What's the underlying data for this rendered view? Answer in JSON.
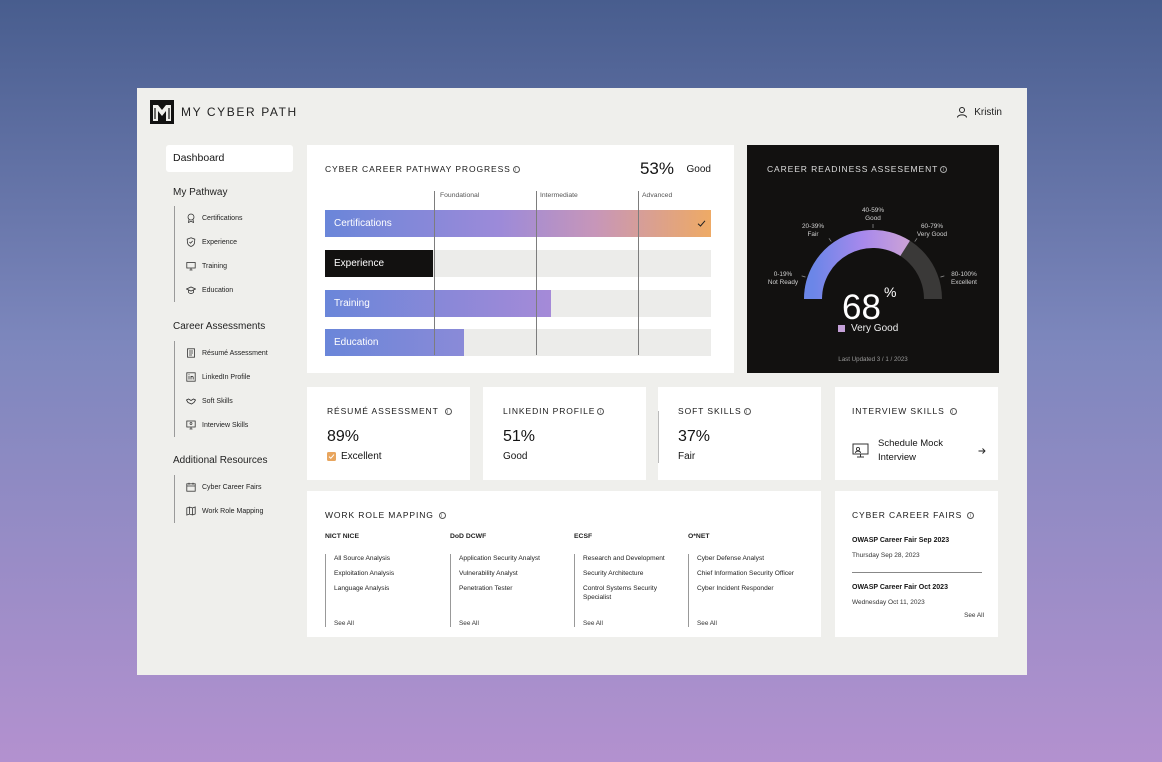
{
  "header": {
    "logo_text": "MY CYBER PATH",
    "user_name": "Kristin"
  },
  "sidebar": {
    "dashboard": "Dashboard",
    "sections": [
      {
        "title": "My Pathway",
        "items": [
          {
            "label": "Certifications",
            "icon": "badge-icon"
          },
          {
            "label": "Experience",
            "icon": "shield-icon"
          },
          {
            "label": "Training",
            "icon": "monitor-icon"
          },
          {
            "label": "Education",
            "icon": "graduation-cap-icon"
          }
        ]
      },
      {
        "title": "Career Assessments",
        "items": [
          {
            "label": "Résumé Assessment",
            "icon": "document-icon"
          },
          {
            "label": "LinkedIn Profile",
            "icon": "linkedin-icon"
          },
          {
            "label": "Soft Skills",
            "icon": "handshake-icon"
          },
          {
            "label": "Interview Skills",
            "icon": "interview-icon"
          }
        ]
      },
      {
        "title": "Additional Resources",
        "items": [
          {
            "label": "Cyber Career Fairs",
            "icon": "calendar-icon"
          },
          {
            "label": "Work Role Mapping",
            "icon": "map-icon"
          }
        ]
      }
    ]
  },
  "pathway": {
    "title": "CYBER CAREER PATHWAY PROGRESS",
    "percent": "53%",
    "rating": "Good",
    "levels": [
      "Foundational",
      "Intermediate",
      "Advanced"
    ],
    "bars": [
      {
        "label": "Certifications",
        "progress": 1.0,
        "complete": true
      },
      {
        "label": "Experience",
        "progress": 0.28,
        "complete": false
      },
      {
        "label": "Training",
        "progress": 0.585,
        "complete": false
      },
      {
        "label": "Education",
        "progress": 0.36,
        "complete": false
      }
    ]
  },
  "readiness": {
    "title": "CAREER READINESS ASSESEMENT",
    "value": "68",
    "value_unit": "%",
    "value_fraction": 0.68,
    "rating": "Very Good",
    "updated": "Last Updated 3 / 1 / 2023",
    "labels": [
      {
        "range": "0-19%",
        "name": "Not Ready"
      },
      {
        "range": "20-39%",
        "name": "Fair"
      },
      {
        "range": "40-59%",
        "name": "Good"
      },
      {
        "range": "60-79%",
        "name": "Very Good"
      },
      {
        "range": "80-100%",
        "name": "Excellent"
      }
    ]
  },
  "metrics": [
    {
      "title": "RÉSUMÉ ASSESSMENT",
      "percent": "89%",
      "rating": "Excellent",
      "checked": true
    },
    {
      "title": "LINKEDIN PROFILE",
      "percent": "51%",
      "rating": "Good",
      "checked": false
    },
    {
      "title": "SOFT SKILLS",
      "percent": "37%",
      "rating": "Fair",
      "checked": false
    }
  ],
  "interview": {
    "title": "INTERVIEW SKILLS",
    "action": "Schedule Mock Interview"
  },
  "work_roles": {
    "title": "WORK ROLE MAPPING",
    "see_all": "See All",
    "columns": [
      {
        "head": "NICT NICE",
        "items": [
          "All Source Analysis",
          "Exploitation Analysis",
          "Language Analysis"
        ]
      },
      {
        "head": "DoD DCWF",
        "items": [
          "Application Security Analyst",
          "Vulnerability Analyst",
          "Penetration Tester"
        ]
      },
      {
        "head": "ECSF",
        "items": [
          "Research and Development",
          "Security Architecture",
          "Control Systems Security Specialist"
        ]
      },
      {
        "head": "O*NET",
        "items": [
          "Cyber Defense Analyst",
          "Chief Information Security Officer",
          "Cyber Incident Responder"
        ]
      }
    ]
  },
  "fairs": {
    "title": "CYBER CAREER FAIRS",
    "see_all": "See All",
    "items": [
      {
        "name": "OWASP Career Fair Sep 2023",
        "date": "Thursday Sep 28, 2023"
      },
      {
        "name": "OWASP Career Fair Oct 2023",
        "date": "Wednesday Oct 11, 2023"
      }
    ]
  },
  "colors": {
    "accent_blue": "#6a86d9",
    "accent_purple": "#a58ad8",
    "accent_orange": "#eaa860",
    "dark": "#121110"
  }
}
